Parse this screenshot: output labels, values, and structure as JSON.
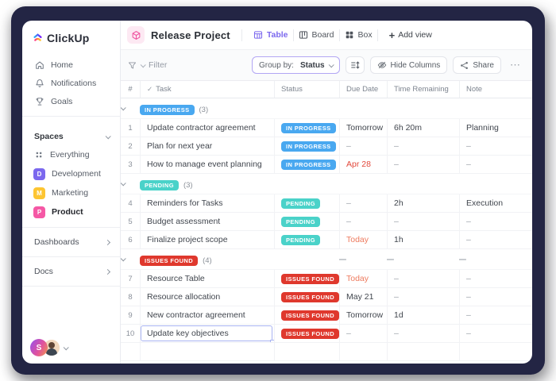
{
  "colors": {
    "accent": "#7b68ee",
    "in_progress": "#49a8f0",
    "pending": "#4ad2c9",
    "issues_found": "#df382d",
    "due_red": "#e2493c",
    "due_orange": "#ee7b5f"
  },
  "sidebar": {
    "logo_text": "ClickUp",
    "nav": [
      {
        "icon": "home",
        "label": "Home"
      },
      {
        "icon": "bell",
        "label": "Notifications"
      },
      {
        "icon": "trophy",
        "label": "Goals"
      }
    ],
    "spaces_header": "Spaces",
    "spaces": [
      {
        "icon": "grid",
        "label": "Everything",
        "bold": false
      },
      {
        "letter": "D",
        "color": "#7b68ee",
        "label": "Development",
        "bold": false
      },
      {
        "letter": "M",
        "color": "#fdc532",
        "label": "Marketing",
        "bold": false
      },
      {
        "letter": "P",
        "color": "#f558a5",
        "label": "Product",
        "bold": true
      }
    ],
    "links": [
      {
        "label": "Dashboards"
      },
      {
        "label": "Docs"
      }
    ],
    "user_initial": "S"
  },
  "header": {
    "title": "Release Project",
    "views": [
      {
        "icon": "table",
        "label": "Table",
        "active": true
      },
      {
        "icon": "board",
        "label": "Board",
        "active": false
      },
      {
        "icon": "box",
        "label": "Box",
        "active": false
      }
    ],
    "add_view": "Add view",
    "plus": "+"
  },
  "toolbar": {
    "filter_label": "Filter",
    "group_by_prefix": "Group by:",
    "group_by_value": "Status",
    "hide_columns_label": "Hide Columns",
    "share_label": "Share",
    "more_label": "⋯"
  },
  "table": {
    "columns": [
      "#",
      "Task",
      "Status",
      "Due Date",
      "Time Remaining",
      "Note"
    ],
    "groups": [
      {
        "label": "IN PROGRESS",
        "count": "(3)",
        "color_key": "in_progress",
        "header_dashes": false,
        "rows": [
          {
            "num": "1",
            "task": "Update contractor agreement",
            "status": "IN PROGRESS",
            "due": "Tomorrow",
            "due_style": "",
            "time": "6h 20m",
            "note": "Planning",
            "selected": false
          },
          {
            "num": "2",
            "task": "Plan for next year",
            "status": "IN PROGRESS",
            "due": "–",
            "due_style": "",
            "time": "–",
            "note": "–",
            "selected": false
          },
          {
            "num": "3",
            "task": "How to manage event planning",
            "status": "IN PROGRESS",
            "due": "Apr 28",
            "due_style": "red",
            "time": "–",
            "note": "–",
            "selected": false
          }
        ]
      },
      {
        "label": "PENDING",
        "count": "(3)",
        "color_key": "pending",
        "header_dashes": false,
        "rows": [
          {
            "num": "4",
            "task": "Reminders for Tasks",
            "status": "PENDING",
            "due": "–",
            "due_style": "",
            "time": "2h",
            "note": "Execution",
            "selected": false
          },
          {
            "num": "5",
            "task": "Budget assessment",
            "status": "PENDING",
            "due": "–",
            "due_style": "",
            "time": "–",
            "note": "–",
            "selected": false
          },
          {
            "num": "6",
            "task": "Finalize project scope",
            "status": "PENDING",
            "due": "Today",
            "due_style": "orange",
            "time": "1h",
            "note": "–",
            "selected": false
          }
        ]
      },
      {
        "label": "ISSUES FOUND",
        "count": "(4)",
        "color_key": "issues_found",
        "header_dashes": true,
        "rows": [
          {
            "num": "7",
            "task": "Resource Table",
            "status": "ISSUES FOUND",
            "due": "Today",
            "due_style": "orange",
            "time": "–",
            "note": "–",
            "selected": false
          },
          {
            "num": "8",
            "task": "Resource allocation",
            "status": "ISSUES FOUND",
            "due": "May 21",
            "due_style": "",
            "time": "–",
            "note": "–",
            "selected": false
          },
          {
            "num": "9",
            "task": "New contractor agreement",
            "status": "ISSUES FOUND",
            "due": "Tomorrow",
            "due_style": "",
            "time": "1d",
            "note": "–",
            "selected": false
          },
          {
            "num": "10",
            "task": "Update key objectives",
            "status": "ISSUES FOUND",
            "due": "–",
            "due_style": "",
            "time": "–",
            "note": "–",
            "selected": true
          }
        ]
      }
    ],
    "dash": "–"
  }
}
